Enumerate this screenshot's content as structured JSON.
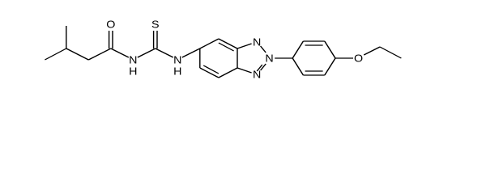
{
  "atoms": [
    {
      "label": "O"
    },
    {
      "label": "N",
      "h": "H"
    },
    {
      "label": "S"
    },
    {
      "label": "N",
      "h": "H"
    },
    {
      "label": "N"
    },
    {
      "label": "N"
    },
    {
      "label": "N"
    },
    {
      "label": "O"
    }
  ]
}
